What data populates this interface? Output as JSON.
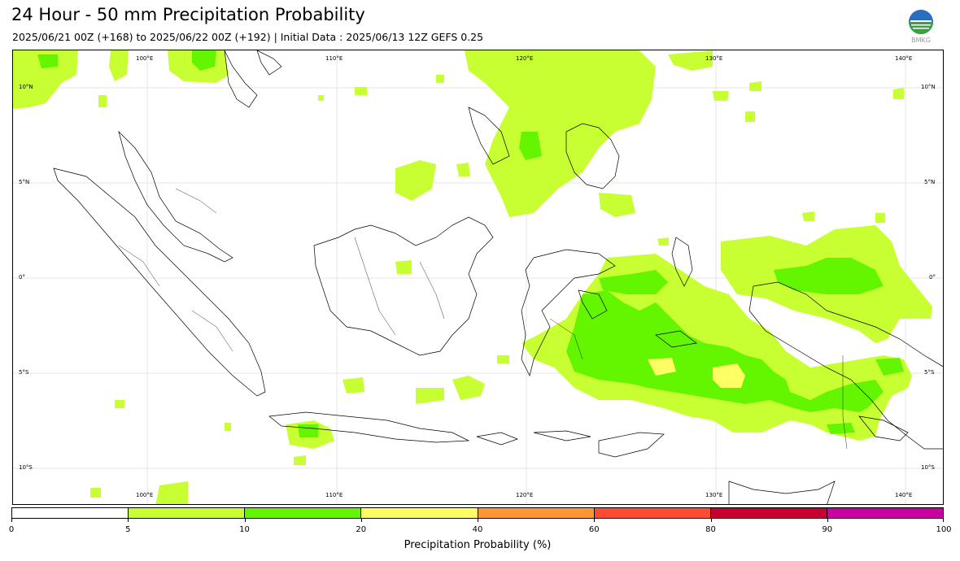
{
  "title": "24 Hour - 50 mm Precipitation Probability",
  "subtitle": "2025/06/21 00Z (+168) to 2025/06/22 00Z (+192) | Initial Data : 2025/06/13 12Z GEFS 0.25",
  "logo_text": "BMKG",
  "map": {
    "lon_labels": [
      "100°E",
      "110°E",
      "120°E",
      "130°E",
      "140°E"
    ],
    "lat_labels": [
      "10°N",
      "5°N",
      "0°",
      "5°S",
      "10°S"
    ]
  },
  "colorbar": {
    "title": "Precipitation Probability (%)",
    "tick_labels": [
      "0",
      "5",
      "10",
      "20",
      "40",
      "60",
      "80",
      "90",
      "100"
    ],
    "colors": [
      "#ffffff",
      "#c8ff32",
      "#64f500",
      "#ffff64",
      "#ff9632",
      "#ff4b32",
      "#c80032",
      "#c800a0"
    ]
  }
}
